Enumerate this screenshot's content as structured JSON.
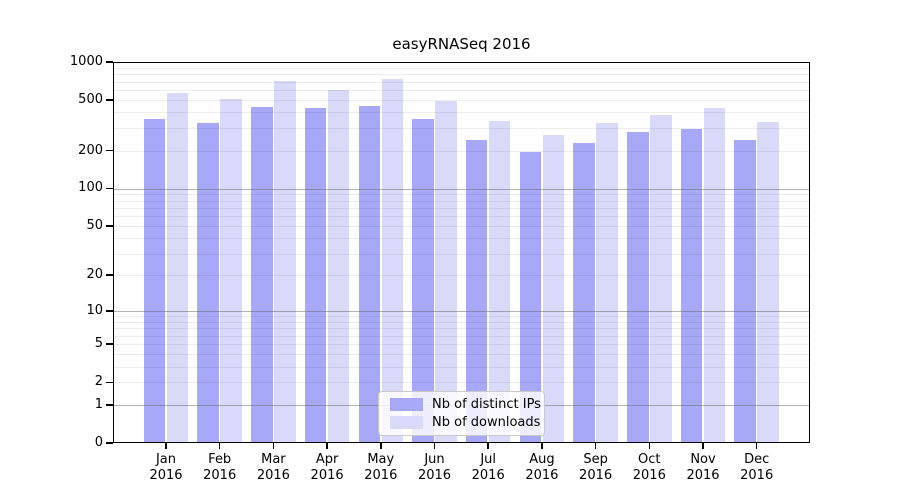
{
  "chart_data": {
    "type": "bar",
    "title": "easyRNASeq 2016",
    "year_label": "2016",
    "categories": [
      "Jan",
      "Feb",
      "Mar",
      "Apr",
      "May",
      "Jun",
      "Jul",
      "Aug",
      "Sep",
      "Oct",
      "Nov",
      "Dec"
    ],
    "series": [
      {
        "name": "Nb of distinct IPs",
        "color": "#a8a8f8",
        "values": [
          355,
          328,
          440,
          432,
          449,
          354,
          243,
          196,
          228,
          282,
          299,
          243
        ]
      },
      {
        "name": "Nb of downloads",
        "color": "#d9d9fa",
        "values": [
          570,
          515,
          705,
          607,
          740,
          490,
          344,
          265,
          328,
          380,
          436,
          335
        ]
      }
    ],
    "yticks": [
      0,
      1,
      2,
      5,
      10,
      20,
      50,
      100,
      200,
      500,
      1000
    ],
    "ylim": [
      0,
      1000
    ],
    "yscale": "log1p",
    "grid": "on",
    "legend_position": "lower-center-inside",
    "colors": {
      "axis": "#000000",
      "grid_major": "#9a9a9a",
      "grid_minor": "#ececec",
      "background": "#ffffff"
    }
  }
}
